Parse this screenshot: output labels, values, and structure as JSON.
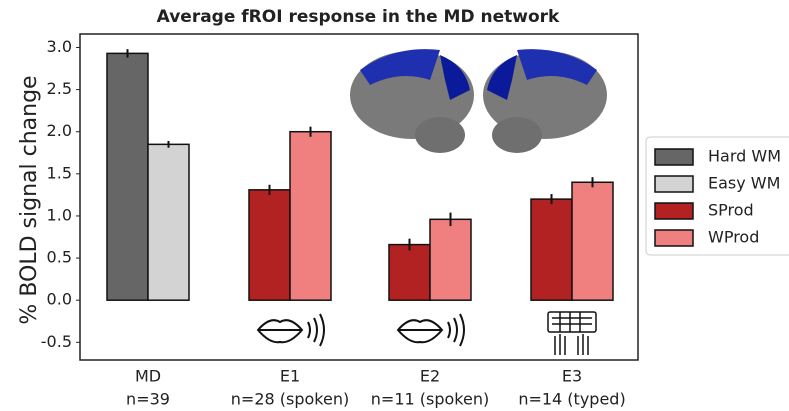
{
  "chart_data": {
    "type": "bar",
    "title": "Average fROI response in the MD network",
    "y_label": "% BOLD signal change",
    "categories": [
      "MD",
      "E1",
      "E2",
      "E3"
    ],
    "category_sublabels": [
      "n=39",
      "n=28 (spoken)",
      "n=11 (spoken)",
      "n=14 (typed)"
    ],
    "series": [
      {
        "name": "Hard WM",
        "color": "#666666",
        "values": [
          2.93,
          null,
          null,
          null
        ],
        "errors": [
          0.05,
          null,
          null,
          null
        ]
      },
      {
        "name": "Easy WM",
        "color": "#d3d3d3",
        "values": [
          1.85,
          null,
          null,
          null
        ],
        "errors": [
          0.04,
          null,
          null,
          null
        ]
      },
      {
        "name": "SProd",
        "color": "#b22222",
        "values": [
          null,
          1.31,
          0.66,
          1.2
        ],
        "errors": [
          null,
          0.06,
          0.07,
          0.06
        ]
      },
      {
        "name": "WProd",
        "color": "#f08080",
        "values": [
          null,
          2.0,
          0.96,
          1.4
        ],
        "errors": [
          null,
          0.06,
          0.08,
          0.06
        ]
      }
    ],
    "ylim": [
      -0.71,
      3.16
    ],
    "yticks": [
      -0.5,
      0.0,
      0.5,
      1.0,
      1.5,
      2.0,
      2.5,
      3.0
    ]
  }
}
